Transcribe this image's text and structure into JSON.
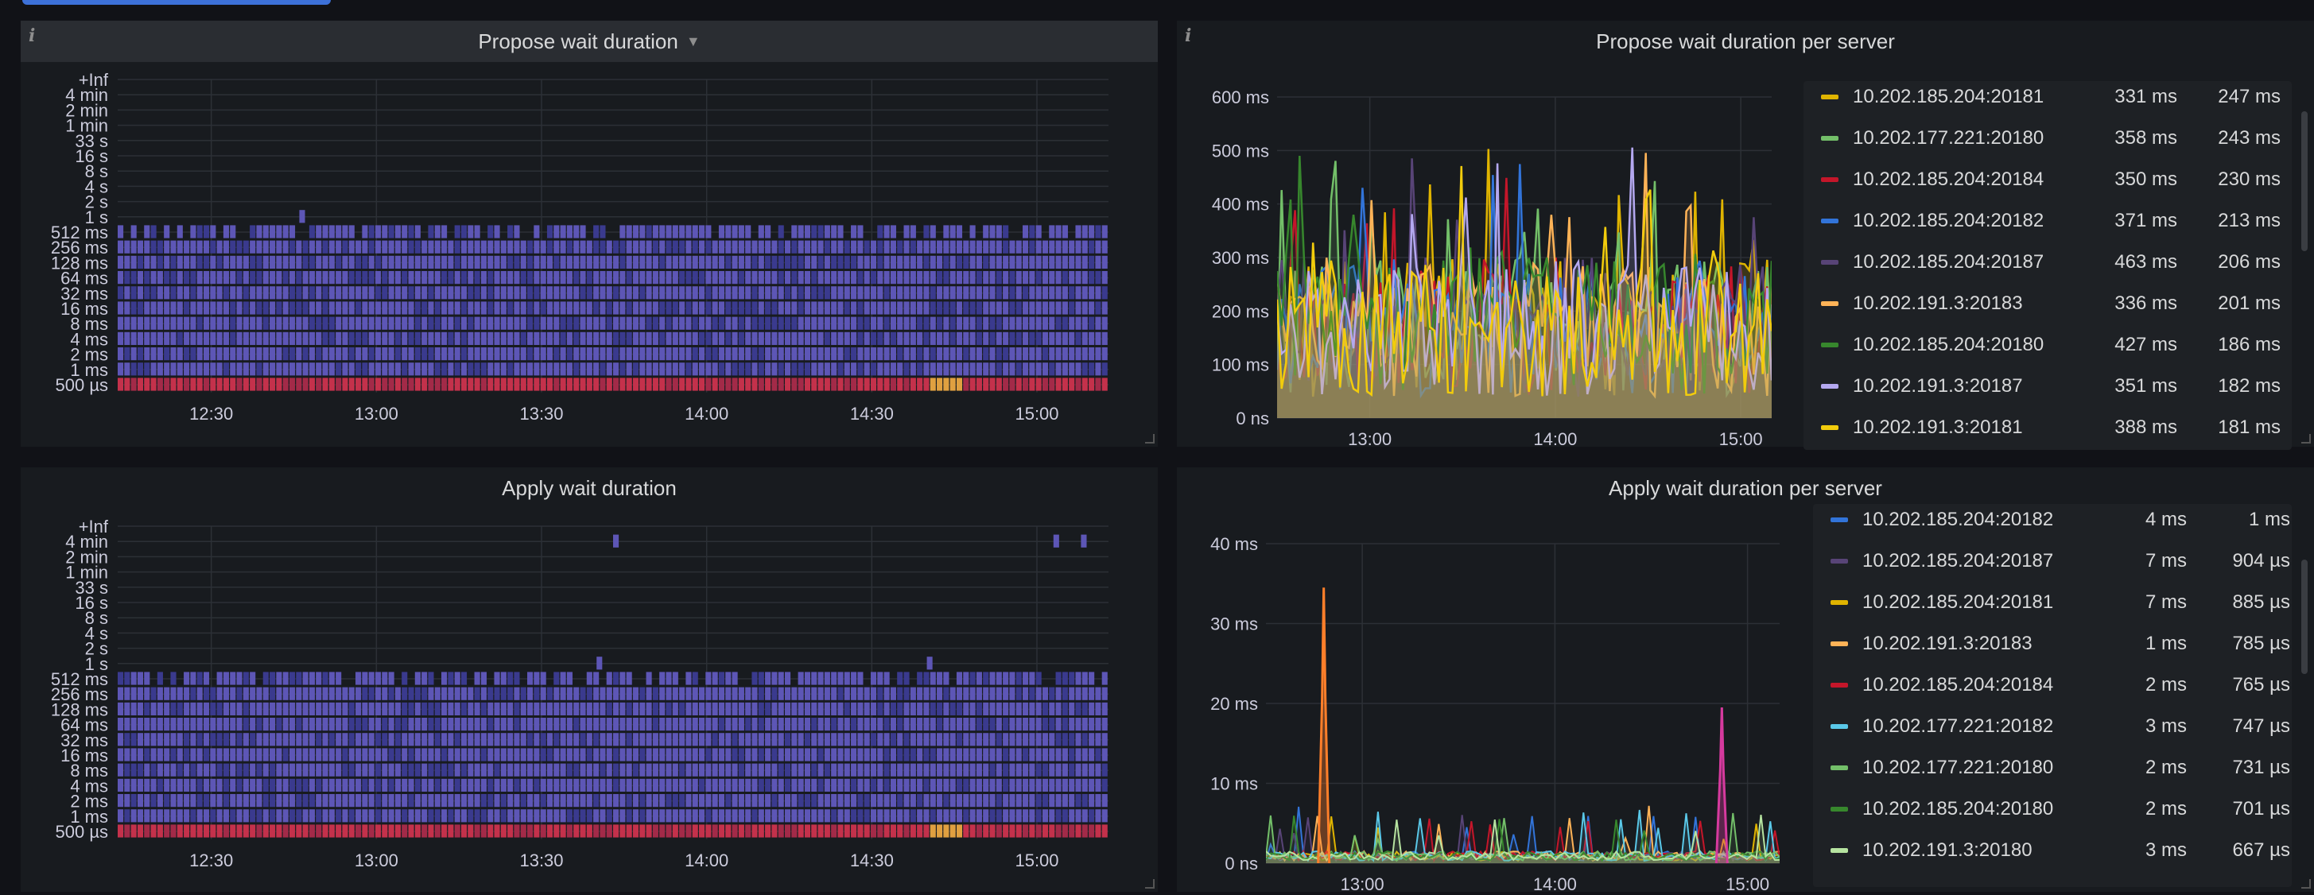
{
  "colors": {
    "background": "#111217",
    "panel": "#181b1f",
    "heat_low": "#3a3a8e",
    "heat_mid": "#5d56b6",
    "heat_hot": "#c4314b",
    "heat_warm": "#e0a040"
  },
  "panels": {
    "propose_heatmap": {
      "title": "Propose wait duration",
      "info_icon": "info-icon",
      "menu_icon": "caret-down-icon",
      "chart_data": {
        "type": "heatmap",
        "title": "Propose wait duration",
        "y_buckets": [
          "+Inf",
          "4 min",
          "2 min",
          "1 min",
          "33 s",
          "16 s",
          "8 s",
          "4 s",
          "2 s",
          "1 s",
          "512 ms",
          "256 ms",
          "128 ms",
          "64 ms",
          "32 ms",
          "16 ms",
          "8 ms",
          "4 ms",
          "2 ms",
          "1 ms",
          "500 µs"
        ],
        "x_ticks": [
          "12:30",
          "13:00",
          "13:30",
          "14:00",
          "14:30",
          "15:00"
        ],
        "filled_buckets": [
          "512 ms",
          "256 ms",
          "128 ms",
          "64 ms",
          "32 ms",
          "16 ms",
          "8 ms",
          "4 ms",
          "2 ms",
          "1 ms",
          "500 µs"
        ],
        "hottest_bucket": "500 µs",
        "sparse_points": [
          {
            "bucket": "1 s",
            "time": "12:46"
          }
        ],
        "grid": true
      }
    },
    "propose_per_server": {
      "title": "Propose wait duration per server",
      "info_icon": "info-icon",
      "chart_data": {
        "type": "line",
        "title": "Propose wait duration per server",
        "y_ticks": [
          "600 ms",
          "500 ms",
          "400 ms",
          "300 ms",
          "200 ms",
          "100 ms",
          "0 ns"
        ],
        "x_ticks": [
          "13:00",
          "14:00",
          "15:00"
        ],
        "ylim": [
          0,
          600
        ],
        "xlim": [
          "12:30",
          "15:10"
        ],
        "grid": true,
        "legend_placement": "right",
        "series": [
          {
            "name": "10.202.185.204:20181",
            "color": "#e0b400",
            "max": "331 ms",
            "avg": "247 ms"
          },
          {
            "name": "10.202.177.221:20180",
            "color": "#73bf69",
            "max": "358 ms",
            "avg": "243 ms"
          },
          {
            "name": "10.202.185.204:20184",
            "color": "#c4162a",
            "max": "350 ms",
            "avg": "230 ms"
          },
          {
            "name": "10.202.185.204:20182",
            "color": "#3274d9",
            "max": "371 ms",
            "avg": "213 ms"
          },
          {
            "name": "10.202.185.204:20187",
            "color": "#584477",
            "max": "463 ms",
            "avg": "206 ms"
          },
          {
            "name": "10.202.191.3:20183",
            "color": "#ffb357",
            "max": "336 ms",
            "avg": "201 ms"
          },
          {
            "name": "10.202.185.204:20180",
            "color": "#37872d",
            "max": "427 ms",
            "avg": "186 ms"
          },
          {
            "name": "10.202.191.3:20187",
            "color": "#b4a8f0",
            "max": "351 ms",
            "avg": "182 ms"
          },
          {
            "name": "10.202.191.3:20181",
            "color": "#f2cc0c",
            "max": "388 ms",
            "avg": "181 ms"
          }
        ]
      }
    },
    "apply_heatmap": {
      "title": "Apply wait duration",
      "chart_data": {
        "type": "heatmap",
        "title": "Apply wait duration",
        "y_buckets": [
          "+Inf",
          "4 min",
          "2 min",
          "1 min",
          "33 s",
          "16 s",
          "8 s",
          "4 s",
          "2 s",
          "1 s",
          "512 ms",
          "256 ms",
          "128 ms",
          "64 ms",
          "32 ms",
          "16 ms",
          "8 ms",
          "4 ms",
          "2 ms",
          "1 ms",
          "500 µs"
        ],
        "x_ticks": [
          "12:30",
          "13:00",
          "13:30",
          "14:00",
          "14:30",
          "15:00"
        ],
        "filled_buckets": [
          "512 ms",
          "256 ms",
          "128 ms",
          "64 ms",
          "32 ms",
          "16 ms",
          "8 ms",
          "4 ms",
          "2 ms",
          "1 ms",
          "500 µs"
        ],
        "hottest_bucket": "500 µs",
        "sparse_points": [
          {
            "bucket": "4 min",
            "time": "13:43"
          },
          {
            "bucket": "4 min",
            "time": "15:03"
          },
          {
            "bucket": "4 min",
            "time": "15:08"
          },
          {
            "bucket": "1 s",
            "time": "13:40"
          },
          {
            "bucket": "1 s",
            "time": "14:40"
          }
        ],
        "grid": true
      }
    },
    "apply_per_server": {
      "title": "Apply wait duration per server",
      "chart_data": {
        "type": "line",
        "title": "Apply wait duration per server",
        "y_ticks": [
          "40 ms",
          "30 ms",
          "20 ms",
          "10 ms",
          "0 ns"
        ],
        "x_ticks": [
          "13:00",
          "14:00",
          "15:00"
        ],
        "ylim": [
          0,
          40
        ],
        "xlim": [
          "12:30",
          "15:10"
        ],
        "grid": true,
        "legend_placement": "right",
        "spikes": [
          {
            "time": "12:48",
            "value": 34.5,
            "color": "#ff7f2a"
          },
          {
            "time": "14:52",
            "value": 19.5,
            "color": "#d63a9e"
          }
        ],
        "series": [
          {
            "name": "10.202.185.204:20182",
            "color": "#3274d9",
            "max": "4 ms",
            "avg": "1 ms"
          },
          {
            "name": "10.202.185.204:20187",
            "color": "#584477",
            "max": "7 ms",
            "avg": "904 µs"
          },
          {
            "name": "10.202.185.204:20181",
            "color": "#e0b400",
            "max": "7 ms",
            "avg": "885 µs"
          },
          {
            "name": "10.202.191.3:20183",
            "color": "#ffb357",
            "max": "1 ms",
            "avg": "785 µs"
          },
          {
            "name": "10.202.185.204:20184",
            "color": "#c4162a",
            "max": "2 ms",
            "avg": "765 µs"
          },
          {
            "name": "10.202.177.221:20182",
            "color": "#5ac8e8",
            "max": "3 ms",
            "avg": "747 µs"
          },
          {
            "name": "10.202.177.221:20180",
            "color": "#73bf69",
            "max": "2 ms",
            "avg": "731 µs"
          },
          {
            "name": "10.202.185.204:20180",
            "color": "#37872d",
            "max": "2 ms",
            "avg": "701 µs"
          },
          {
            "name": "10.202.191.3:20180",
            "color": "#b6e3a0",
            "max": "3 ms",
            "avg": "667 µs"
          }
        ]
      }
    }
  }
}
